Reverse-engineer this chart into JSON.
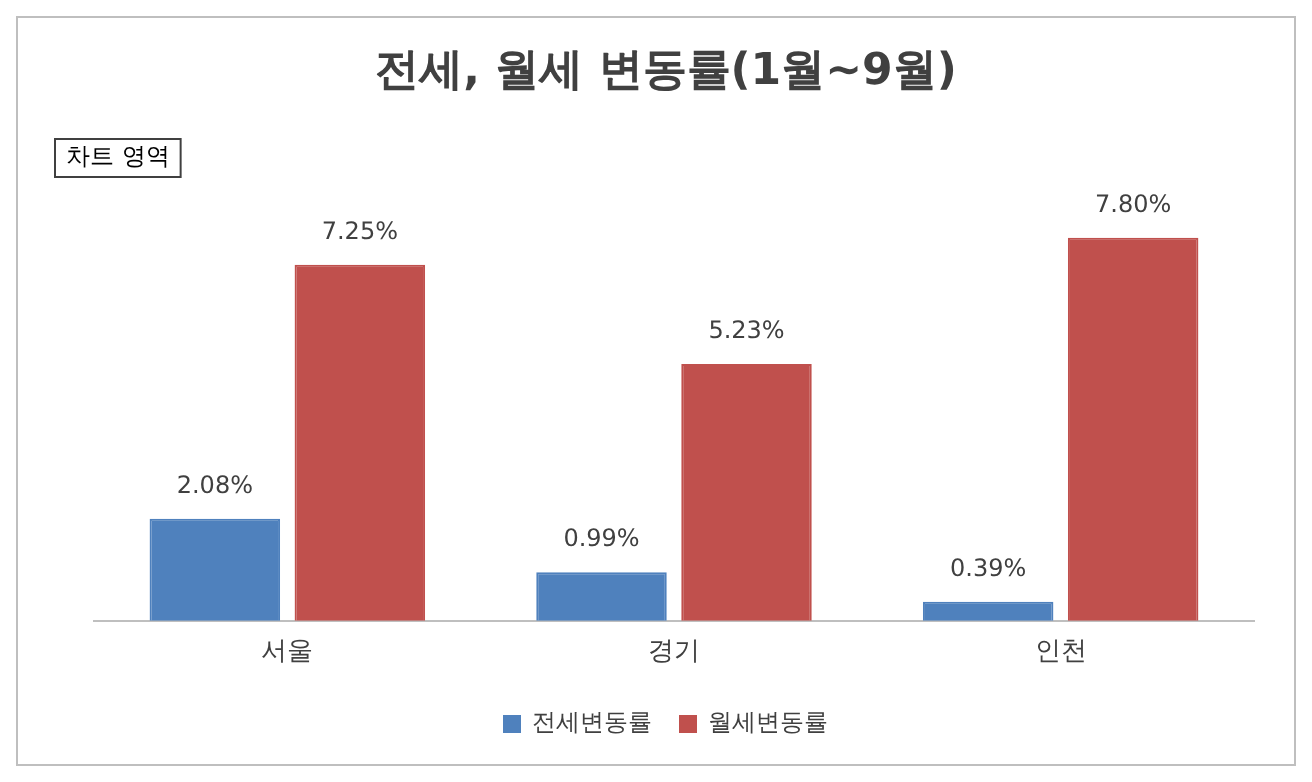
{
  "chart_data": {
    "type": "bar",
    "title": "전세, 월세 변동률(1월~9월)",
    "categories": [
      "서울",
      "경기",
      "인천"
    ],
    "series": [
      {
        "name": "전세변동률",
        "color": "#4f81bd",
        "values": [
          2.08,
          0.99,
          0.39
        ],
        "value_labels": [
          "2.08%",
          "0.99%",
          "0.39%"
        ]
      },
      {
        "name": "월세변동률",
        "color": "#c0504d",
        "values": [
          7.25,
          5.23,
          7.8
        ],
        "value_labels": [
          "7.25%",
          "5.23%",
          "7.80%"
        ]
      }
    ],
    "annotations": [
      "차트 영역"
    ],
    "legend": "bottom",
    "grid": false
  }
}
